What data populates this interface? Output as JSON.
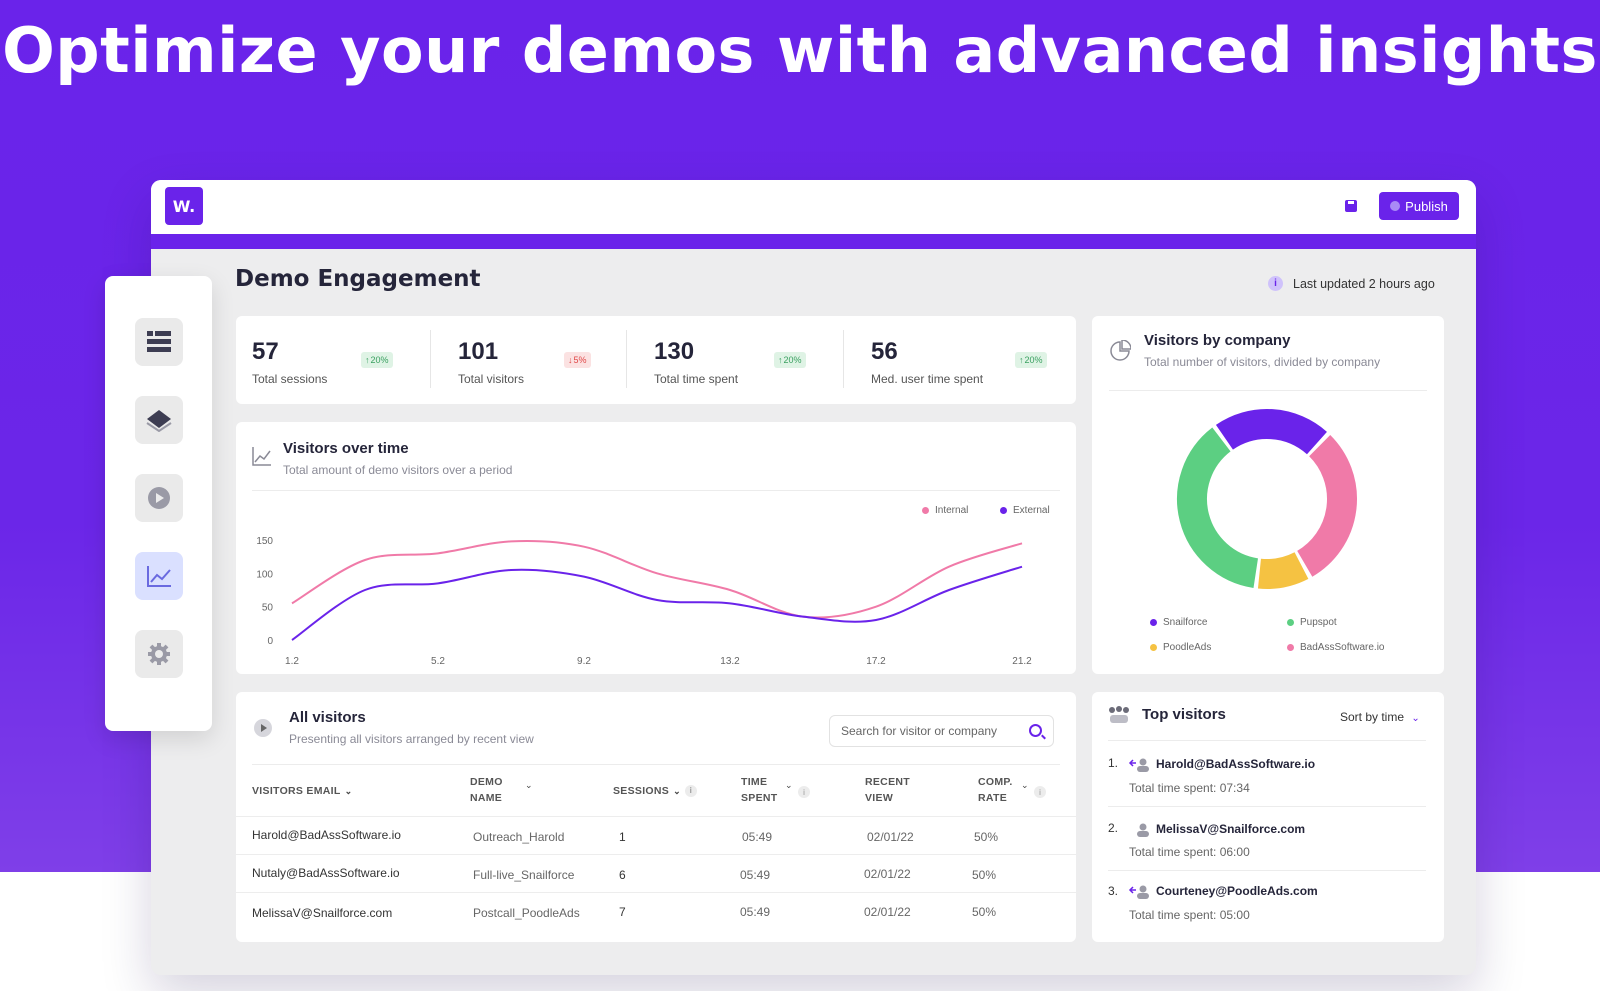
{
  "hero": {
    "title": "Optimize your demos with advanced insights"
  },
  "topbar": {
    "logo": "W.",
    "publish_label": "Publish"
  },
  "page": {
    "title": "Demo Engagement",
    "last_updated": "Last updated 2 hours ago"
  },
  "stats": [
    {
      "value": "57",
      "label": "Total sessions",
      "change": "20%",
      "direction": "up"
    },
    {
      "value": "101",
      "label": "Total visitors",
      "change": "5%",
      "direction": "down"
    },
    {
      "value": "130",
      "label": "Total time spent",
      "change": "20%",
      "direction": "up"
    },
    {
      "value": "56",
      "label": "Med. user time spent",
      "change": "20%",
      "direction": "up"
    }
  ],
  "sidebar": {
    "items": [
      {
        "icon": "grid-list-icon",
        "active": false
      },
      {
        "icon": "layers-icon",
        "active": false
      },
      {
        "icon": "play-icon",
        "active": false
      },
      {
        "icon": "line-chart-icon",
        "active": true
      },
      {
        "icon": "gear-icon",
        "active": false
      }
    ]
  },
  "visitors_chart": {
    "title": "Visitors over time",
    "subtitle": "Total amount of demo visitors over a period",
    "legend": [
      "Internal",
      "External"
    ]
  },
  "chart_data": [
    {
      "type": "line",
      "title": "Visitors over time",
      "x_ticks": [
        "1.2",
        "5.2",
        "9.2",
        "13.2",
        "17.2",
        "21.2"
      ],
      "y_ticks": [
        "150",
        "100",
        "50",
        "0"
      ],
      "ylim": [
        0,
        150
      ],
      "xlim": [
        1.2,
        21.2
      ],
      "series": [
        {
          "name": "Internal",
          "color": "#f07aa8",
          "x": [
            1.2,
            3.2,
            5.2,
            7.2,
            9.2,
            11.2,
            13.2,
            15.2,
            17.2,
            19.2,
            21.2
          ],
          "values": [
            55,
            120,
            130,
            148,
            140,
            100,
            75,
            35,
            50,
            110,
            145
          ]
        },
        {
          "name": "External",
          "color": "#6a23ea",
          "x": [
            1.2,
            3.2,
            5.2,
            7.2,
            9.2,
            11.2,
            13.2,
            15.2,
            17.2,
            19.2,
            21.2
          ],
          "values": [
            0,
            75,
            85,
            105,
            95,
            60,
            55,
            35,
            30,
            75,
            110
          ]
        }
      ],
      "legend": "top-right",
      "grid": false
    },
    {
      "type": "pie",
      "title": "Visitors by company",
      "subtitle": "Total number of visitors, divided by company",
      "categories": [
        "Snailforce",
        "Pupspot",
        "PoodleAds",
        "BadAssSoftware.io"
      ],
      "colors": [
        "#6a23ea",
        "#5ccf82",
        "#f5c242",
        "#f07aa8"
      ],
      "values": [
        22,
        38,
        10,
        30
      ],
      "legend": "bottom"
    }
  ],
  "company_chart": {
    "title": "Visitors by company",
    "subtitle": "Total number of visitors, divided by company",
    "legend": [
      "Snailforce",
      "Pupspot",
      "PoodleAds",
      "BadAssSoftware.io"
    ]
  },
  "all_visitors": {
    "title": "All visitors",
    "subtitle": "Presenting all visitors arranged by recent view",
    "search_placeholder": "Search for visitor or company",
    "columns": [
      "VISITORS EMAIL",
      "DEMO\nNAME",
      "SESSIONS",
      "TIME\nSPENT",
      "RECENT\nVIEW",
      "COMP.\nRATE"
    ],
    "rows": [
      [
        "Harold@BadAssSoftware.io",
        "Outreach_Harold",
        "1",
        "05:49",
        "02/01/22",
        "50%"
      ],
      [
        "Nutaly@BadAssSoftware.io",
        "Full-live_Snailforce",
        "6",
        "05:49",
        "02/01/22",
        "50%"
      ],
      [
        "MelissaV@Snailforce.com",
        "Postcall_PoodleAds",
        "7",
        "05:49",
        "02/01/22",
        "50%"
      ]
    ]
  },
  "top_visitors": {
    "title": "Top visitors",
    "sort_label": "Sort by time",
    "items": [
      {
        "rank": "1.",
        "email": "Harold@BadAssSoftware.io",
        "time": "Total time spent: 07:34"
      },
      {
        "rank": "2.",
        "email": "MelissaV@Snailforce.com",
        "time": "Total time spent: 06:00"
      },
      {
        "rank": "3.",
        "email": "Courteney@PoodleAds.com",
        "time": "Total time spent: 05:00"
      }
    ]
  }
}
